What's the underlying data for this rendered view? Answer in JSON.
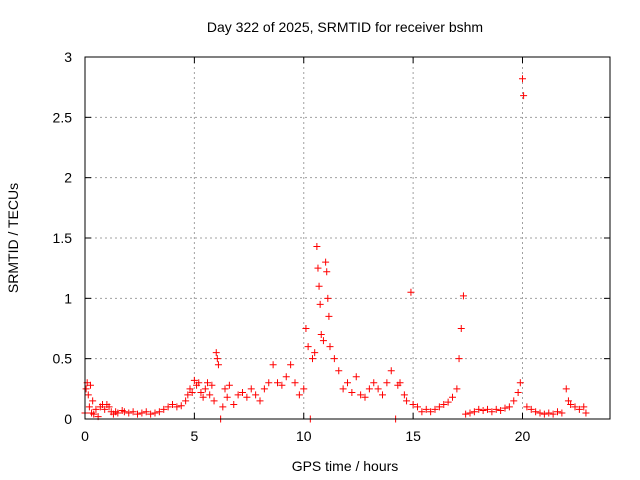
{
  "chart_data": {
    "type": "scatter",
    "title": "Day 322 of 2025, SRMTID for receiver bshm",
    "xlabel": "GPS time / hours",
    "ylabel": "SRMTID / TECUs",
    "xlim": [
      0,
      24
    ],
    "ylim": [
      0,
      3
    ],
    "xticks": [
      0,
      5,
      10,
      15,
      20
    ],
    "yticks": [
      0,
      0.5,
      1,
      1.5,
      2,
      2.5,
      3
    ],
    "xtick_labels": [
      "0",
      "5",
      "10",
      "15",
      "20"
    ],
    "ytick_labels": [
      "0",
      "0.5",
      "1",
      "1.5",
      "2",
      "2.5",
      "3"
    ],
    "grid": true,
    "marker": "+",
    "series": [
      {
        "name": "bshm",
        "color": "#ff0000",
        "points": [
          [
            0.0,
            0.05
          ],
          [
            0.05,
            0.25
          ],
          [
            0.1,
            0.3
          ],
          [
            0.15,
            0.2
          ],
          [
            0.2,
            0.1
          ],
          [
            0.25,
            0.28
          ],
          [
            0.3,
            0.05
          ],
          [
            0.35,
            0.15
          ],
          [
            0.4,
            0.04
          ],
          [
            0.5,
            0.08
          ],
          [
            0.6,
            0.02
          ],
          [
            0.7,
            0.1
          ],
          [
            0.8,
            0.12
          ],
          [
            0.9,
            0.08
          ],
          [
            1.0,
            0.12
          ],
          [
            1.1,
            0.1
          ],
          [
            1.2,
            0.06
          ],
          [
            1.3,
            0.04
          ],
          [
            1.4,
            0.06
          ],
          [
            1.5,
            0.05
          ],
          [
            1.7,
            0.07
          ],
          [
            1.8,
            0.06
          ],
          [
            2.0,
            0.05
          ],
          [
            2.2,
            0.06
          ],
          [
            2.4,
            0.04
          ],
          [
            2.6,
            0.05
          ],
          [
            2.8,
            0.06
          ],
          [
            3.0,
            0.04
          ],
          [
            3.2,
            0.05
          ],
          [
            3.4,
            0.06
          ],
          [
            3.6,
            0.08
          ],
          [
            3.8,
            0.1
          ],
          [
            4.0,
            0.12
          ],
          [
            4.2,
            0.1
          ],
          [
            4.4,
            0.11
          ],
          [
            4.6,
            0.15
          ],
          [
            4.7,
            0.2
          ],
          [
            4.8,
            0.25
          ],
          [
            4.9,
            0.22
          ],
          [
            5.0,
            0.32
          ],
          [
            5.1,
            0.28
          ],
          [
            5.2,
            0.3
          ],
          [
            5.3,
            0.22
          ],
          [
            5.4,
            0.18
          ],
          [
            5.5,
            0.25
          ],
          [
            5.6,
            0.3
          ],
          [
            5.7,
            0.2
          ],
          [
            5.8,
            0.28
          ],
          [
            5.9,
            0.15
          ],
          [
            6.0,
            0.55
          ],
          [
            6.05,
            0.5
          ],
          [
            6.1,
            0.45
          ],
          [
            6.2,
            0.0
          ],
          [
            6.3,
            0.1
          ],
          [
            6.4,
            0.25
          ],
          [
            6.5,
            0.18
          ],
          [
            6.6,
            0.28
          ],
          [
            6.8,
            0.12
          ],
          [
            7.0,
            0.2
          ],
          [
            7.2,
            0.22
          ],
          [
            7.4,
            0.18
          ],
          [
            7.6,
            0.25
          ],
          [
            7.8,
            0.2
          ],
          [
            8.0,
            0.15
          ],
          [
            8.2,
            0.25
          ],
          [
            8.4,
            0.3
          ],
          [
            8.6,
            0.45
          ],
          [
            8.8,
            0.3
          ],
          [
            9.0,
            0.28
          ],
          [
            9.2,
            0.35
          ],
          [
            9.4,
            0.45
          ],
          [
            9.6,
            0.3
          ],
          [
            9.8,
            0.2
          ],
          [
            10.0,
            0.25
          ],
          [
            10.1,
            0.75
          ],
          [
            10.2,
            0.6
          ],
          [
            10.3,
            0.0
          ],
          [
            10.4,
            0.5
          ],
          [
            10.5,
            0.55
          ],
          [
            10.6,
            1.43
          ],
          [
            10.65,
            1.25
          ],
          [
            10.7,
            1.1
          ],
          [
            10.75,
            0.95
          ],
          [
            10.8,
            0.7
          ],
          [
            10.9,
            0.65
          ],
          [
            11.0,
            1.3
          ],
          [
            11.05,
            1.22
          ],
          [
            11.1,
            1.0
          ],
          [
            11.15,
            0.85
          ],
          [
            11.2,
            0.6
          ],
          [
            11.4,
            0.5
          ],
          [
            11.6,
            0.4
          ],
          [
            11.8,
            0.25
          ],
          [
            12.0,
            0.3
          ],
          [
            12.2,
            0.22
          ],
          [
            12.4,
            0.35
          ],
          [
            12.6,
            0.2
          ],
          [
            12.8,
            0.18
          ],
          [
            13.0,
            0.25
          ],
          [
            13.2,
            0.3
          ],
          [
            13.4,
            0.25
          ],
          [
            13.6,
            0.2
          ],
          [
            13.8,
            0.3
          ],
          [
            14.0,
            0.4
          ],
          [
            14.2,
            0.0
          ],
          [
            14.3,
            0.28
          ],
          [
            14.4,
            0.3
          ],
          [
            14.6,
            0.2
          ],
          [
            14.7,
            0.15
          ],
          [
            14.9,
            1.05
          ],
          [
            15.0,
            0.12
          ],
          [
            15.2,
            0.1
          ],
          [
            15.4,
            0.06
          ],
          [
            15.6,
            0.08
          ],
          [
            15.8,
            0.06
          ],
          [
            16.0,
            0.08
          ],
          [
            16.2,
            0.1
          ],
          [
            16.4,
            0.12
          ],
          [
            16.6,
            0.14
          ],
          [
            16.8,
            0.18
          ],
          [
            17.0,
            0.25
          ],
          [
            17.1,
            0.5
          ],
          [
            17.2,
            0.75
          ],
          [
            17.3,
            1.02
          ],
          [
            17.4,
            0.04
          ],
          [
            17.6,
            0.05
          ],
          [
            17.8,
            0.06
          ],
          [
            18.0,
            0.08
          ],
          [
            18.2,
            0.07
          ],
          [
            18.4,
            0.08
          ],
          [
            18.6,
            0.06
          ],
          [
            18.8,
            0.08
          ],
          [
            19.0,
            0.07
          ],
          [
            19.2,
            0.09
          ],
          [
            19.4,
            0.1
          ],
          [
            19.6,
            0.15
          ],
          [
            19.8,
            0.22
          ],
          [
            19.9,
            0.3
          ],
          [
            20.0,
            2.82
          ],
          [
            20.05,
            2.68
          ],
          [
            20.2,
            0.1
          ],
          [
            20.4,
            0.08
          ],
          [
            20.6,
            0.06
          ],
          [
            20.8,
            0.05
          ],
          [
            21.0,
            0.04
          ],
          [
            21.2,
            0.05
          ],
          [
            21.4,
            0.04
          ],
          [
            21.6,
            0.06
          ],
          [
            21.8,
            0.05
          ],
          [
            22.0,
            0.25
          ],
          [
            22.1,
            0.15
          ],
          [
            22.2,
            0.12
          ],
          [
            22.4,
            0.1
          ],
          [
            22.6,
            0.08
          ],
          [
            22.8,
            0.1
          ],
          [
            22.9,
            0.05
          ]
        ]
      }
    ]
  }
}
